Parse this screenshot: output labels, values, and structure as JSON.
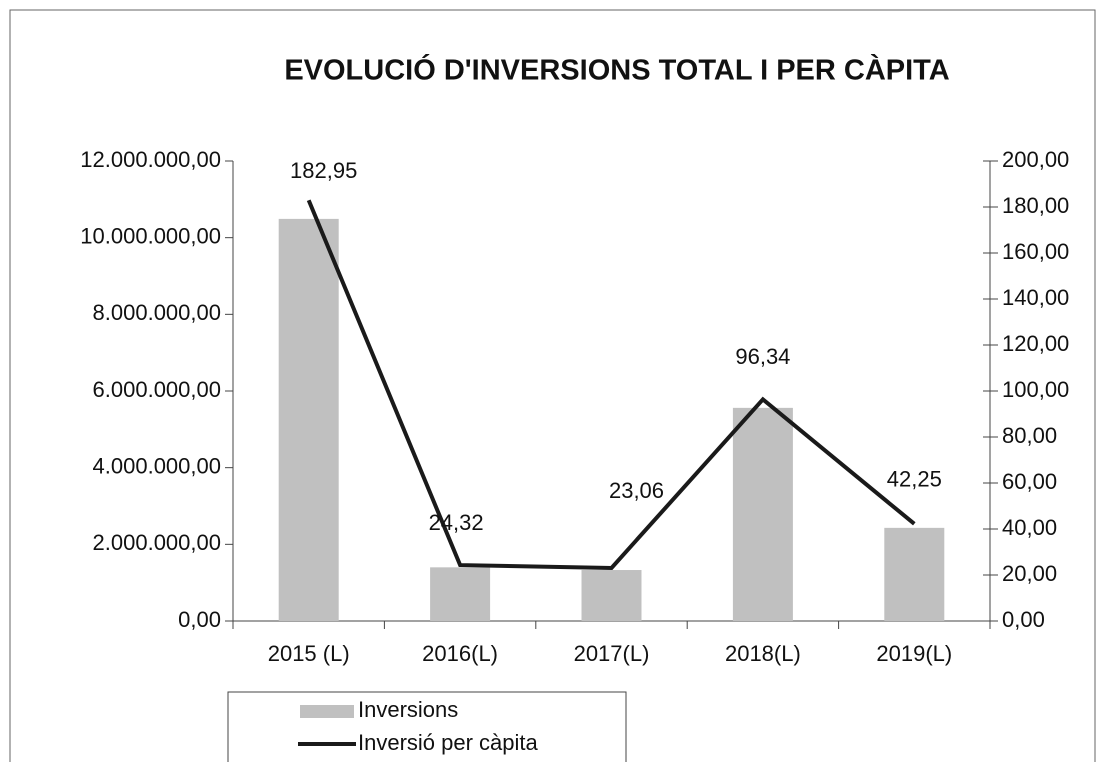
{
  "chart_data": {
    "type": "bar",
    "title": "EVOLUCIÓ D'INVERSIONS TOTAL I PER CÀPITA",
    "categories": [
      "2015 (L)",
      "2016(L)",
      "2017(L)",
      "2018(L)",
      "2019(L)"
    ],
    "series": [
      {
        "name": "Inversions",
        "type": "bar",
        "color": "#c0c0c0",
        "values": [
          10490000,
          1400000,
          1330000,
          5560000,
          2430000
        ]
      },
      {
        "name": "Inversió per càpita",
        "type": "line",
        "axis": "y2",
        "color": "#1a1a1a",
        "values": [
          182.95,
          24.32,
          23.06,
          96.34,
          42.25
        ],
        "value_labels": [
          "182,95",
          "24,32",
          "23,06",
          "96,34",
          "42,25"
        ]
      }
    ],
    "ylim": [
      0,
      12000000
    ],
    "yticks": [
      {
        "value": 0,
        "label": "0,00"
      },
      {
        "value": 2000000,
        "label": "2.000.000,00"
      },
      {
        "value": 4000000,
        "label": "4.000.000,00"
      },
      {
        "value": 6000000,
        "label": "6.000.000,00"
      },
      {
        "value": 8000000,
        "label": "8.000.000,00"
      },
      {
        "value": 10000000,
        "label": "10.000.000,00"
      },
      {
        "value": 12000000,
        "label": "12.000.000,00"
      }
    ],
    "y2lim": [
      0,
      200
    ],
    "y2ticks": [
      {
        "value": 0,
        "label": "0,00"
      },
      {
        "value": 20,
        "label": "20,00"
      },
      {
        "value": 40,
        "label": "40,00"
      },
      {
        "value": 60,
        "label": "60,00"
      },
      {
        "value": 80,
        "label": "80,00"
      },
      {
        "value": 100,
        "label": "100,00"
      },
      {
        "value": 120,
        "label": "120,00"
      },
      {
        "value": 140,
        "label": "140,00"
      },
      {
        "value": 160,
        "label": "160,00"
      },
      {
        "value": 180,
        "label": "180,00"
      },
      {
        "value": 200,
        "label": "200,00"
      }
    ],
    "grid": false,
    "legend": "bottom"
  }
}
